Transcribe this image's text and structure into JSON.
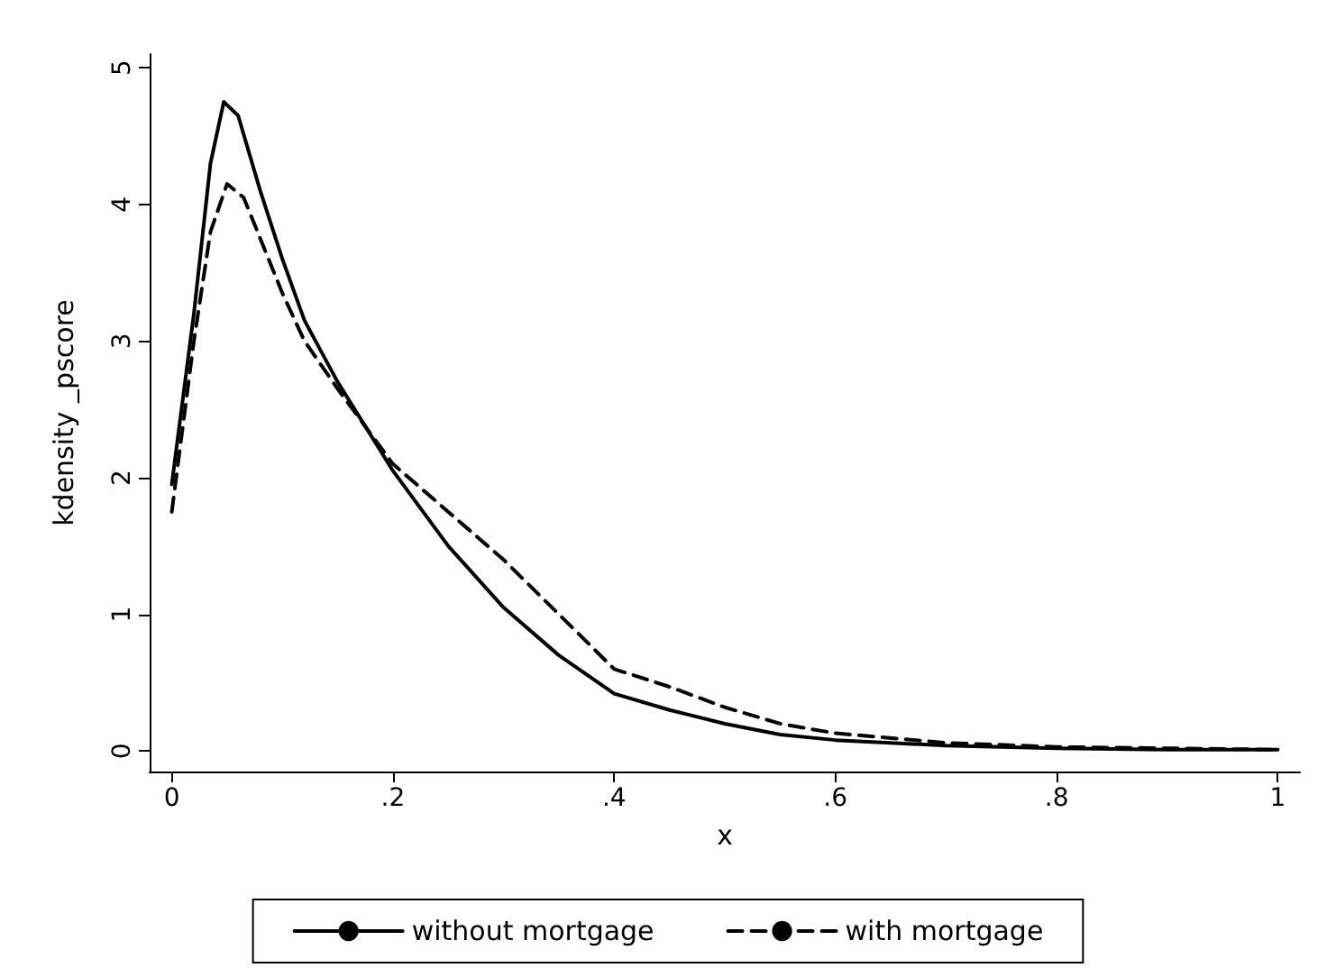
{
  "chart_data": {
    "type": "line",
    "xlabel": "x",
    "ylabel": "kdensity _pscore",
    "xlim": [
      -0.02,
      1.02
    ],
    "ylim": [
      -0.15,
      5.1
    ],
    "xticks": [
      {
        "value": 0,
        "label": "0"
      },
      {
        "value": 0.2,
        "label": ".2"
      },
      {
        "value": 0.4,
        "label": ".4"
      },
      {
        "value": 0.6,
        "label": ".6"
      },
      {
        "value": 0.8,
        "label": ".8"
      },
      {
        "value": 1,
        "label": "1"
      }
    ],
    "yticks": [
      0,
      1,
      2,
      3,
      4,
      5
    ],
    "grid": false,
    "legend": "bottom",
    "marker": "none",
    "series": [
      {
        "name": "without mortgage",
        "color": "#000000",
        "line_style": "solid",
        "x": [
          0,
          0.02,
          0.035,
          0.047,
          0.06,
          0.08,
          0.1,
          0.12,
          0.15,
          0.2,
          0.25,
          0.3,
          0.35,
          0.4,
          0.45,
          0.5,
          0.55,
          0.6,
          0.7,
          0.8,
          0.9,
          1
        ],
        "values": [
          1.95,
          3.2,
          4.3,
          4.75,
          4.65,
          4.1,
          3.6,
          3.15,
          2.7,
          2.05,
          1.5,
          1.05,
          0.7,
          0.42,
          0.3,
          0.2,
          0.12,
          0.08,
          0.04,
          0.02,
          0.01,
          0.01
        ]
      },
      {
        "name": "with mortgage",
        "color": "#000000",
        "line_style": "dashed",
        "x": [
          0,
          0.02,
          0.035,
          0.05,
          0.065,
          0.08,
          0.1,
          0.12,
          0.15,
          0.2,
          0.25,
          0.3,
          0.35,
          0.4,
          0.45,
          0.5,
          0.55,
          0.6,
          0.7,
          0.8,
          0.9,
          1
        ],
        "values": [
          1.75,
          3.0,
          3.8,
          4.15,
          4.05,
          3.75,
          3.35,
          3.0,
          2.65,
          2.1,
          1.75,
          1.4,
          1.0,
          0.6,
          0.47,
          0.32,
          0.2,
          0.13,
          0.06,
          0.03,
          0.02,
          0.01
        ]
      }
    ]
  }
}
